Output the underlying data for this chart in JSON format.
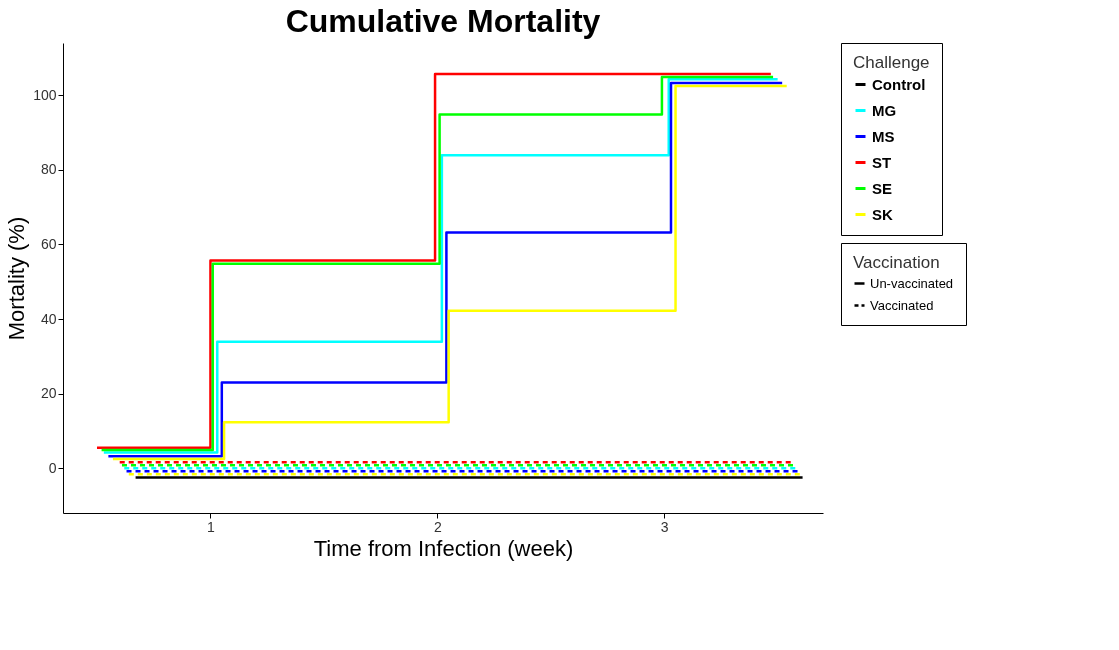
{
  "chart_data": {
    "type": "step",
    "title": "Cumulative Mortality",
    "xlabel": "Time from Infection (week)",
    "ylabel": "Mortality (%)",
    "legend_title": [
      "Challenge",
      "Vaccination"
    ],
    "annotations": [
      "Un-vaccinated",
      "Vaccinated"
    ],
    "xlim": [
      0.35,
      3.7
    ],
    "xticks": [
      1,
      2,
      3
    ],
    "ylim": [
      -12,
      114
    ],
    "yticks": [
      0,
      20,
      40,
      60,
      80,
      100
    ],
    "grid": false,
    "legend": "right",
    "marker": "none",
    "series": [
      {
        "name": "Control",
        "color": "#000000",
        "line_style": "solid",
        "x": [
          0.67,
          3.61
        ],
        "values": [
          -2.5,
          -2.5
        ]
      },
      {
        "name": "MG",
        "color": "#00ffff",
        "line_style": "solid",
        "x": [
          0.53,
          1.03,
          2.02,
          3.02,
          3.5
        ],
        "values": [
          4.2,
          33.9,
          83.9,
          104.3,
          104.3
        ]
      },
      {
        "name": "MS",
        "color": "#0000ff",
        "line_style": "solid",
        "x": [
          0.55,
          1.05,
          2.04,
          3.03,
          3.52
        ],
        "values": [
          3.2,
          23.0,
          63.2,
          103.3,
          103.3
        ]
      },
      {
        "name": "ST",
        "color": "#ff0000",
        "line_style": "solid",
        "x": [
          0.5,
          1.0,
          1.99,
          3.47
        ],
        "values": [
          5.5,
          55.7,
          105.7,
          105.7
        ]
      },
      {
        "name": "SE",
        "color": "#00ff00",
        "line_style": "solid",
        "x": [
          0.52,
          1.01,
          2.01,
          2.99,
          3.48
        ],
        "values": [
          4.9,
          54.8,
          94.8,
          104.9,
          104.9
        ]
      },
      {
        "name": "SK",
        "color": "#ffff00",
        "line_style": "solid",
        "x": [
          0.57,
          1.06,
          2.05,
          3.05,
          3.54
        ],
        "values": [
          2.5,
          12.3,
          42.2,
          102.5,
          102.5
        ]
      },
      {
        "color": "#ff0000",
        "line_style": "dashed",
        "x": [
          0.6,
          3.57
        ],
        "values": [
          1.6,
          1.6
        ]
      },
      {
        "color": "#00ff00",
        "line_style": "dashed",
        "x": [
          0.61,
          3.58
        ],
        "values": [
          0.8,
          0.8
        ]
      },
      {
        "color": "#00ffff",
        "line_style": "dashed",
        "x": [
          0.62,
          3.59
        ],
        "values": [
          0.0,
          0.0
        ]
      },
      {
        "color": "#0000ff",
        "line_style": "dashed",
        "x": [
          0.63,
          3.6
        ],
        "values": [
          -0.8,
          -0.8
        ]
      },
      {
        "color": "#ffff00",
        "line_style": "dashed",
        "x": [
          0.64,
          3.61
        ],
        "values": [
          -1.6,
          -1.6
        ]
      }
    ]
  }
}
